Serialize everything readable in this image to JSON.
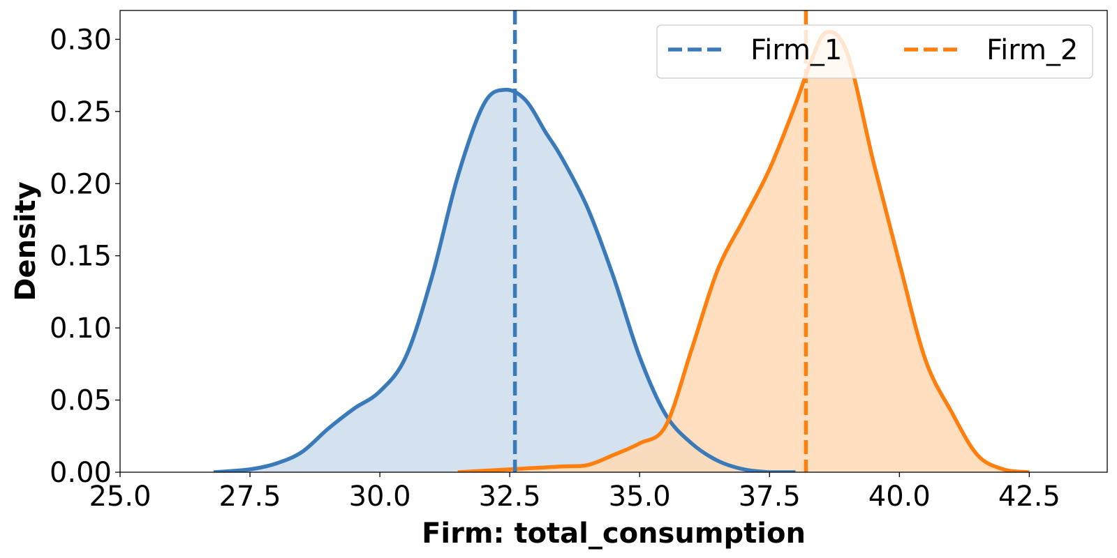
{
  "chart_data": {
    "type": "area",
    "title": "",
    "xlabel": "Firm: total_consumption",
    "ylabel": "Density",
    "xlim": [
      25.0,
      44.0
    ],
    "ylim": [
      0.0,
      0.32
    ],
    "xticks": [
      "25.0",
      "27.5",
      "30.0",
      "32.5",
      "35.0",
      "37.5",
      "40.0",
      "42.5"
    ],
    "xtick_values": [
      25.0,
      27.5,
      30.0,
      32.5,
      35.0,
      37.5,
      40.0,
      42.5
    ],
    "yticks": [
      "0.00",
      "0.05",
      "0.10",
      "0.15",
      "0.20",
      "0.25",
      "0.30"
    ],
    "ytick_values": [
      0.0,
      0.05,
      0.1,
      0.15,
      0.2,
      0.25,
      0.3
    ],
    "legend": {
      "location": "top-right",
      "columns": 2
    },
    "grid": false,
    "series": [
      {
        "name": "Firm_1",
        "color": "#3a7ab8",
        "fill": "#ccdcec",
        "mean_line": 32.6,
        "x": [
          26.8,
          27.5,
          28.0,
          28.5,
          29.0,
          29.5,
          30.0,
          30.5,
          31.0,
          31.5,
          32.0,
          32.4,
          32.8,
          33.2,
          33.5,
          34.0,
          34.5,
          35.0,
          35.5,
          36.0,
          36.5,
          37.0,
          37.5,
          38.0
        ],
        "y": [
          0.0,
          0.002,
          0.006,
          0.014,
          0.03,
          0.044,
          0.056,
          0.08,
          0.135,
          0.205,
          0.255,
          0.265,
          0.258,
          0.235,
          0.218,
          0.183,
          0.135,
          0.08,
          0.04,
          0.02,
          0.008,
          0.002,
          0.0,
          0.0
        ]
      },
      {
        "name": "Firm_2",
        "color": "#ff7f0e",
        "fill": "#ffd9b5",
        "mean_line": 38.2,
        "x": [
          31.5,
          32.5,
          33.5,
          34.0,
          34.5,
          35.0,
          35.5,
          36.0,
          36.5,
          37.0,
          37.5,
          38.0,
          38.3,
          38.6,
          39.0,
          39.5,
          40.0,
          40.5,
          41.0,
          41.5,
          42.0,
          42.5
        ],
        "y": [
          0.0,
          0.002,
          0.004,
          0.005,
          0.012,
          0.02,
          0.032,
          0.085,
          0.14,
          0.175,
          0.21,
          0.255,
          0.285,
          0.305,
          0.29,
          0.215,
          0.145,
          0.078,
          0.042,
          0.012,
          0.002,
          0.0
        ]
      }
    ]
  }
}
